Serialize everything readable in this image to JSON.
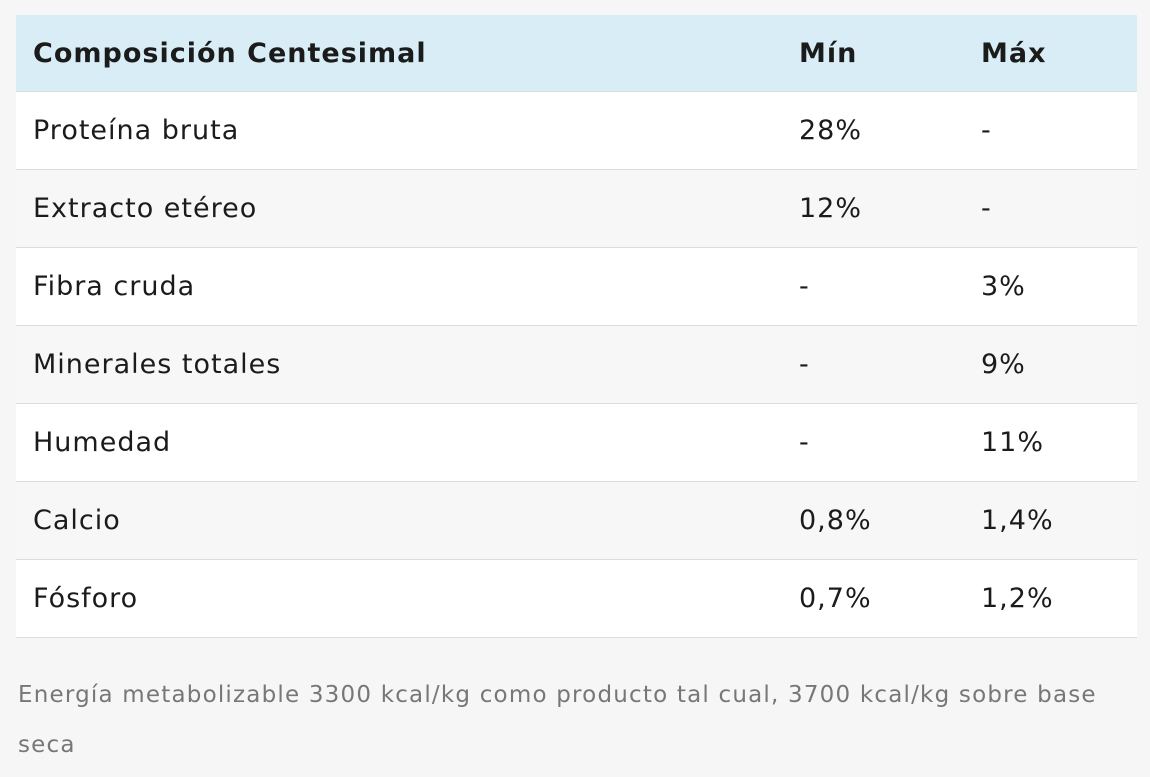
{
  "table": {
    "header": [
      "Composición Centesimal",
      "Mín",
      "Máx"
    ],
    "rows": [
      [
        "Proteína bruta",
        "28%",
        "-"
      ],
      [
        "Extracto etéreo",
        "12%",
        "-"
      ],
      [
        "Fibra cruda",
        "-",
        "3%"
      ],
      [
        "Minerales totales",
        "-",
        "9%"
      ],
      [
        "Humedad",
        "-",
        "11%"
      ],
      [
        "Calcio",
        "0,8%",
        "1,4%"
      ],
      [
        "Fósforo",
        "0,7%",
        "1,2%"
      ]
    ]
  },
  "note": "Energía metabolizable 3300 kcal/kg como producto tal cual, 3700 kcal/kg sobre base seca"
}
